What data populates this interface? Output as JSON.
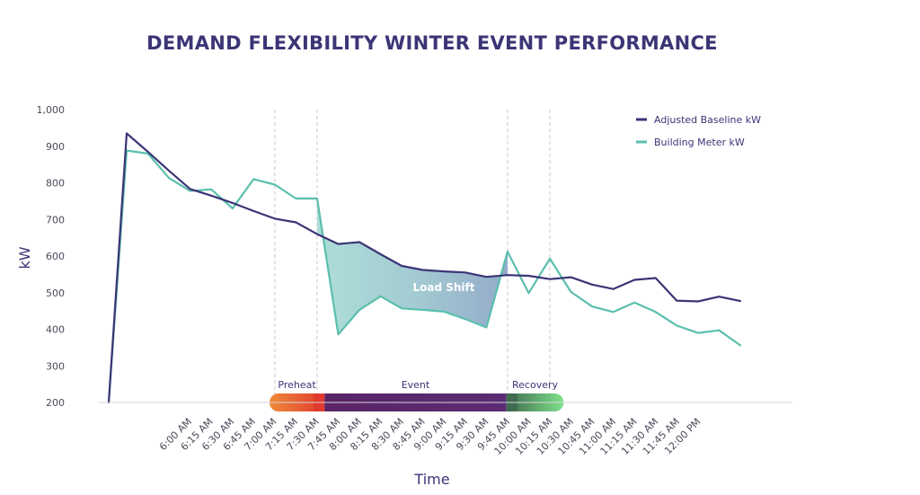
{
  "chart_data": {
    "type": "line",
    "title": "DEMAND FLEXIBILITY WINTER EVENT PERFORMANCE",
    "xlabel": "Time",
    "ylabel": "kW",
    "ylim": [
      200,
      1000
    ],
    "yticks": [
      200,
      300,
      400,
      500,
      600,
      700,
      800,
      900,
      1000
    ],
    "ytick_labels": [
      "200",
      "300",
      "400",
      "500",
      "600",
      "700",
      "800",
      "900",
      "1,000"
    ],
    "categories": [
      "6:00 AM",
      "6:15 AM",
      "6:30 AM",
      "6:45 AM",
      "7:00 AM",
      "7:15 AM",
      "7:30 AM",
      "7:45 AM",
      "8:00 AM",
      "8:15 AM",
      "8:30 AM",
      "8:45 AM",
      "9:00 AM",
      "9:15 AM",
      "9:30 AM",
      "9:45 AM",
      "10:00 AM",
      "10:15 AM",
      "10:30 AM",
      "10:45 AM",
      "11:00 AM",
      "11:15 AM",
      "11:30 AM",
      "11:45 AM",
      "12:00 PM"
    ],
    "series": [
      {
        "name": "Adjusted Baseline kW",
        "color": "#3b3576",
        "points": [
          [
            -0.85,
            200
          ],
          [
            0,
            935
          ],
          [
            1,
            885
          ],
          [
            2,
            833
          ],
          [
            3,
            783
          ],
          [
            4,
            765
          ],
          [
            5,
            745
          ],
          [
            6,
            723
          ],
          [
            7,
            702
          ],
          [
            8,
            692
          ],
          [
            9,
            660
          ],
          [
            10,
            633
          ],
          [
            11,
            638
          ],
          [
            12,
            605
          ],
          [
            13,
            573
          ],
          [
            14,
            562
          ],
          [
            15,
            558
          ],
          [
            16,
            555
          ],
          [
            17,
            543
          ],
          [
            18,
            548
          ],
          [
            19,
            546
          ],
          [
            20,
            537
          ],
          [
            21,
            542
          ],
          [
            22,
            522
          ],
          [
            23,
            510
          ],
          [
            24,
            535
          ],
          [
            25,
            540
          ],
          [
            26,
            478
          ],
          [
            27,
            476
          ],
          [
            28,
            489
          ],
          [
            29,
            477
          ]
        ]
      },
      {
        "name": "Building Meter kW",
        "color": "#5bbfad",
        "points": [
          [
            -0.85,
            200
          ],
          [
            0,
            888
          ],
          [
            1,
            880
          ],
          [
            2,
            813
          ],
          [
            3,
            778
          ],
          [
            4,
            782
          ],
          [
            5,
            730
          ],
          [
            6,
            810
          ],
          [
            7,
            795
          ],
          [
            8,
            757
          ],
          [
            9,
            757
          ],
          [
            10,
            386
          ],
          [
            11,
            453
          ],
          [
            12,
            490
          ],
          [
            13,
            457
          ],
          [
            14,
            453
          ],
          [
            15,
            448
          ],
          [
            16,
            428
          ],
          [
            17,
            405
          ],
          [
            18,
            612
          ],
          [
            19,
            499
          ],
          [
            20,
            593
          ],
          [
            21,
            502
          ],
          [
            22,
            462
          ],
          [
            23,
            447
          ],
          [
            24,
            473
          ],
          [
            25,
            447
          ],
          [
            26,
            410
          ],
          [
            27,
            390
          ],
          [
            28,
            397
          ],
          [
            29,
            356
          ]
        ]
      }
    ],
    "phases": [
      {
        "label": "Preheat",
        "from": 6.75,
        "to": 9.35
      },
      {
        "label": "Event",
        "from": 9.35,
        "to": 17.95
      },
      {
        "label": "Recovery",
        "from": 17.95,
        "to": 20.65
      }
    ],
    "phase_boundaries": [
      7,
      9,
      18,
      20
    ],
    "annotations": [
      {
        "text": "Load Shift"
      }
    ],
    "legend_position": "top-right",
    "grid": false
  },
  "colors": {
    "title": "#3b3576",
    "baseline": "#3b3576",
    "meter": "#5bbfad",
    "preheat_start": "#ef8a3a",
    "preheat_end": "#e03a2e",
    "event": "#5a2a72",
    "recovery_start": "#3f6b4e",
    "recovery_end": "#7ee08a"
  }
}
